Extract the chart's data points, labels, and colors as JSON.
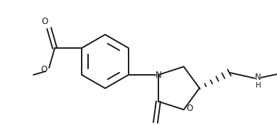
{
  "bg_color": "#ffffff",
  "line_color": "#1a1a1a",
  "line_width": 1.4,
  "figsize": [
    3.9,
    1.77
  ],
  "dpi": 100,
  "xlim": [
    0,
    390
  ],
  "ylim": [
    0,
    177
  ]
}
